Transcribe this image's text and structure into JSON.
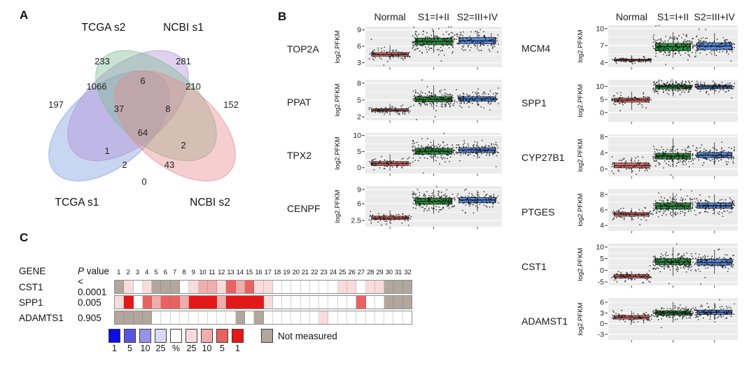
{
  "figure": {
    "panel_a_label": "A",
    "panel_b_label": "B",
    "panel_c_label": "C"
  },
  "chart_data": [
    {
      "type": "venn",
      "panel": "A",
      "sets": [
        {
          "name": "TCGA s2",
          "color": "#b38fd6"
        },
        {
          "name": "NCBI s1",
          "color": "#7dbd92"
        },
        {
          "name": "TCGA s1",
          "color": "#7f9ddd"
        },
        {
          "name": "NCBI s2",
          "color": "#e88a8c"
        }
      ],
      "regions": [
        {
          "sets": "TCGA s2 only",
          "value": "233"
        },
        {
          "sets": "NCBI s1 only",
          "value": "281"
        },
        {
          "sets": "TCGA s1 only",
          "value": "197"
        },
        {
          "sets": "NCBI s2 only",
          "value": "152"
        },
        {
          "sets": "TCGA s1 & TCGA s2",
          "value": "1066"
        },
        {
          "sets": "TCGA s2 & NCBI s1",
          "value": "6"
        },
        {
          "sets": "NCBI s1 & NCBI s2",
          "value": "210"
        },
        {
          "sets": "TCGA s1 & TCGA s2 & NCBI s1",
          "value": "37"
        },
        {
          "sets": "TCGA s2 & NCBI s1 & NCBI s2",
          "value": "8"
        },
        {
          "sets": "all four sets",
          "value": "64"
        },
        {
          "sets": "TCGA s1 & NCBI s1",
          "value": "1"
        },
        {
          "sets": "TCGA s2 & NCBI s2",
          "value": "2"
        },
        {
          "sets": "TCGA s1 & NCBI s1 & NCBI s2",
          "value": "2"
        },
        {
          "sets": "TCGA s1 & TCGA s2 & NCBI s2",
          "value": "43"
        },
        {
          "sets": "TCGA s1 & NCBI s2",
          "value": "0"
        }
      ]
    },
    {
      "type": "box",
      "panel": "B",
      "group_labels": [
        "Normal",
        "S1=I+II",
        "S2=III+IV"
      ],
      "ylabel": "log2.PFKM",
      "box_styles": [
        {
          "group": "Normal",
          "fill": "#e0756b",
          "median": "#6e2020"
        },
        {
          "group": "S1=I+II",
          "fill": "#2e9140",
          "median": "#0e3c18"
        },
        {
          "group": "S2=III+IV",
          "fill": "#5b8dd9",
          "median": "#14306b"
        }
      ],
      "columns": [
        {
          "genes": [
            {
              "name": "TOP2A",
              "yticks": [
                3,
                6,
                9
              ],
              "ylim": [
                2.2,
                9.6
              ],
              "series": [
                {
                  "name": "Normal",
                  "lo": 3.5,
                  "q1": 4.2,
                  "med": 4.5,
                  "q3": 4.85,
                  "hi": 6.2,
                  "n": 75
                },
                {
                  "name": "S1=I+II",
                  "lo": 4.8,
                  "q1": 6.3,
                  "med": 6.9,
                  "q3": 7.5,
                  "hi": 9.0,
                  "n": 170
                },
                {
                  "name": "S2=III+IV",
                  "lo": 5.4,
                  "q1": 6.5,
                  "med": 7.0,
                  "q3": 7.6,
                  "hi": 8.9,
                  "n": 120
                }
              ]
            },
            {
              "name": "PPAT",
              "yticks": [
                2,
                5,
                8
              ],
              "ylim": [
                1.4,
                8.6
              ],
              "series": [
                {
                  "name": "Normal",
                  "lo": 2.3,
                  "q1": 3.0,
                  "med": 3.2,
                  "q3": 3.45,
                  "hi": 4.3,
                  "n": 75
                },
                {
                  "name": "S1=I+II",
                  "lo": 3.3,
                  "q1": 4.7,
                  "med": 5.1,
                  "q3": 5.6,
                  "hi": 7.6,
                  "n": 170
                },
                {
                  "name": "S2=III+IV",
                  "lo": 4.1,
                  "q1": 4.8,
                  "med": 5.2,
                  "q3": 5.6,
                  "hi": 6.6,
                  "n": 120
                }
              ]
            },
            {
              "name": "TPX2",
              "yticks": [
                0,
                5,
                10
              ],
              "ylim": [
                -1.8,
                10.8
              ],
              "series": [
                {
                  "name": "Normal",
                  "lo": -0.9,
                  "q1": 0.7,
                  "med": 1.3,
                  "q3": 1.9,
                  "hi": 4.2,
                  "n": 75
                },
                {
                  "name": "S1=I+II",
                  "lo": 1.8,
                  "q1": 4.2,
                  "med": 5.1,
                  "q3": 6.0,
                  "hi": 8.6,
                  "n": 170
                },
                {
                  "name": "S2=III+IV",
                  "lo": 2.8,
                  "q1": 4.7,
                  "med": 5.5,
                  "q3": 6.2,
                  "hi": 8.2,
                  "n": 120
                }
              ]
            },
            {
              "name": "CENPF",
              "yticks": [
                2.5,
                6,
                9
              ],
              "ylim": [
                1.2,
                9.7
              ],
              "series": [
                {
                  "name": "Normal",
                  "lo": 1.9,
                  "q1": 2.7,
                  "med": 3.0,
                  "q3": 3.4,
                  "hi": 4.6,
                  "n": 75
                },
                {
                  "name": "S1=I+II",
                  "lo": 3.9,
                  "q1": 5.9,
                  "med": 6.5,
                  "q3": 7.2,
                  "hi": 9.0,
                  "n": 170
                },
                {
                  "name": "S2=III+IV",
                  "lo": 4.4,
                  "q1": 6.2,
                  "med": 6.8,
                  "q3": 7.3,
                  "hi": 8.8,
                  "n": 120
                }
              ]
            }
          ]
        },
        {
          "genes": [
            {
              "name": "MCM4",
              "yticks": [
                4,
                7,
                10
              ],
              "ylim": [
                3.2,
                10.6
              ],
              "series": [
                {
                  "name": "Normal",
                  "lo": 3.9,
                  "q1": 4.3,
                  "med": 4.45,
                  "q3": 4.6,
                  "hi": 5.3,
                  "n": 75
                },
                {
                  "name": "S1=I+II",
                  "lo": 4.9,
                  "q1": 6.1,
                  "med": 6.8,
                  "q3": 7.4,
                  "hi": 9.4,
                  "n": 170
                },
                {
                  "name": "S2=III+IV",
                  "lo": 5.2,
                  "q1": 6.3,
                  "med": 6.9,
                  "q3": 7.5,
                  "hi": 9.2,
                  "n": 120
                }
              ]
            },
            {
              "name": "SPP1",
              "yticks": [
                0,
                5,
                10
              ],
              "ylim": [
                -3.5,
                12.5
              ],
              "series": [
                {
                  "name": "Normal",
                  "lo": 1.0,
                  "q1": 4.0,
                  "med": 4.8,
                  "q3": 5.5,
                  "hi": 8.0,
                  "n": 75
                },
                {
                  "name": "S1=I+II",
                  "lo": 6.2,
                  "q1": 9.0,
                  "med": 9.8,
                  "q3": 10.5,
                  "hi": 12.0,
                  "n": 170
                },
                {
                  "name": "S2=III+IV",
                  "lo": 7.0,
                  "q1": 9.1,
                  "med": 9.8,
                  "q3": 10.4,
                  "hi": 11.8,
                  "n": 120
                }
              ]
            },
            {
              "name": "CYP27B1",
              "yticks": [
                0,
                4,
                8
              ],
              "ylim": [
                -1.8,
                8.6
              ],
              "series": [
                {
                  "name": "Normal",
                  "lo": -1.0,
                  "q1": 0.3,
                  "med": 0.85,
                  "q3": 1.5,
                  "hi": 2.9,
                  "n": 70
                },
                {
                  "name": "S1=I+II",
                  "lo": 0.4,
                  "q1": 2.5,
                  "med": 3.2,
                  "q3": 3.9,
                  "hi": 7.6,
                  "n": 170
                },
                {
                  "name": "S2=III+IV",
                  "lo": 1.0,
                  "q1": 2.8,
                  "med": 3.4,
                  "q3": 4.1,
                  "hi": 6.6,
                  "n": 120
                }
              ]
            },
            {
              "name": "PTGES",
              "yticks": [
                4,
                6,
                8
              ],
              "ylim": [
                3.3,
                8.7
              ],
              "series": [
                {
                  "name": "Normal",
                  "lo": 4.6,
                  "q1": 5.2,
                  "med": 5.45,
                  "q3": 5.65,
                  "hi": 6.2,
                  "n": 70
                },
                {
                  "name": "S1=I+II",
                  "lo": 5.0,
                  "q1": 6.1,
                  "med": 6.5,
                  "q3": 6.9,
                  "hi": 8.2,
                  "n": 170
                },
                {
                  "name": "S2=III+IV",
                  "lo": 5.4,
                  "q1": 6.2,
                  "med": 6.55,
                  "q3": 6.9,
                  "hi": 8.0,
                  "n": 120
                }
              ]
            },
            {
              "name": "CST1",
              "yticks": [
                -5,
                0,
                5,
                10
              ],
              "ylim": [
                -6.5,
                11.5
              ],
              "series": [
                {
                  "name": "Normal",
                  "lo": -4.5,
                  "q1": -3.3,
                  "med": -2.6,
                  "q3": -1.8,
                  "hi": -0.4,
                  "n": 70
                },
                {
                  "name": "S1=I+II",
                  "lo": -2.5,
                  "q1": 2.4,
                  "med": 3.6,
                  "q3": 5.0,
                  "hi": 9.8,
                  "n": 170
                },
                {
                  "name": "S2=III+IV",
                  "lo": -1.5,
                  "q1": 2.2,
                  "med": 3.3,
                  "q3": 4.8,
                  "hi": 8.8,
                  "n": 120
                }
              ]
            },
            {
              "name": "ADAMST1",
              "yticks": [
                -3,
                0,
                3,
                6
              ],
              "ylim": [
                -4.6,
                7.2
              ],
              "series": [
                {
                  "name": "Normal",
                  "lo": 0.4,
                  "q1": 1.3,
                  "med": 1.8,
                  "q3": 2.3,
                  "hi": 3.6,
                  "n": 70
                },
                {
                  "name": "S1=I+II",
                  "lo": 0.3,
                  "q1": 2.4,
                  "med": 3.0,
                  "q3": 3.6,
                  "hi": 6.1,
                  "n": 170
                },
                {
                  "name": "S2=III+IV",
                  "lo": 1.1,
                  "q1": 2.6,
                  "med": 3.2,
                  "q3": 3.8,
                  "hi": 5.9,
                  "n": 120
                }
              ]
            }
          ]
        }
      ]
    },
    {
      "type": "heatmap",
      "panel": "C",
      "headers": {
        "gene": "GENE",
        "p_italic": "P",
        "p_rest": " value"
      },
      "columns": [
        "1",
        "2",
        "3",
        "4",
        "5",
        "6",
        "7",
        "8",
        "9",
        "10",
        "11",
        "12",
        "13",
        "14",
        "15",
        "16",
        "17",
        "18",
        "19",
        "20",
        "21",
        "22",
        "23",
        "24",
        "25",
        "26",
        "27",
        "28",
        "29",
        "30",
        "31",
        "32"
      ],
      "palette": {
        "b1": "#0d0de6",
        "b5": "#5555e0",
        "b10": "#9595e8",
        "b25": "#d9d9f4",
        "w": "#ffffff",
        "p25": "#f8dcdc",
        "p10": "#f1acac",
        "p5": "#e96262",
        "p1": "#e61717",
        "nm": "#b1a79d"
      },
      "rows": [
        {
          "gene": "CST1",
          "p_value": "< 0.0001",
          "cells": [
            "nm",
            "p25",
            "w",
            "p25",
            "nm",
            "nm",
            "nm",
            "w",
            "p25",
            "p10",
            "p10",
            "p25",
            "p5",
            "p10",
            "p5",
            "p25",
            "p25",
            "w",
            "w",
            "w",
            "w",
            "w",
            "w",
            "w",
            "p25",
            "p25",
            "w",
            "p25",
            "p25",
            "nm",
            "nm",
            "nm"
          ]
        },
        {
          "gene": "SPP1",
          "p_value": "0.005",
          "cells": [
            "p25",
            "p1",
            "w",
            "p5",
            "p10",
            "p5",
            "p5",
            "p10",
            "p1",
            "p1",
            "p1",
            "p10",
            "p1",
            "p1",
            "p1",
            "p1",
            "p25",
            "w",
            "w",
            "w",
            "w",
            "w",
            "w",
            "w",
            "w",
            "w",
            "p5",
            "w",
            "w",
            "nm",
            "nm",
            "nm"
          ]
        },
        {
          "gene": "ADAMTS1",
          "p_value": "0.905",
          "cells": [
            "nm",
            "nm",
            "nm",
            "nm",
            "w",
            "w",
            "w",
            "w",
            "w",
            "w",
            "w",
            "w",
            "w",
            "nm",
            "w",
            "nm",
            "w",
            "w",
            "w",
            "w",
            "w",
            "w",
            "p25",
            "w",
            "w",
            "w",
            "w",
            "w",
            "w",
            "w",
            "w",
            "w"
          ]
        }
      ],
      "legend": {
        "items": [
          {
            "label": "1",
            "key": "b1"
          },
          {
            "label": "5",
            "key": "b5"
          },
          {
            "label": "10",
            "key": "b10"
          },
          {
            "label": "25",
            "key": "b25"
          },
          {
            "label": "%",
            "key": "w"
          },
          {
            "label": "25",
            "key": "p25"
          },
          {
            "label": "10",
            "key": "p10"
          },
          {
            "label": "5",
            "key": "p5"
          },
          {
            "label": "1",
            "key": "p1"
          }
        ],
        "not_measured_label": "Not measured",
        "not_measured_key": "nm"
      }
    }
  ]
}
